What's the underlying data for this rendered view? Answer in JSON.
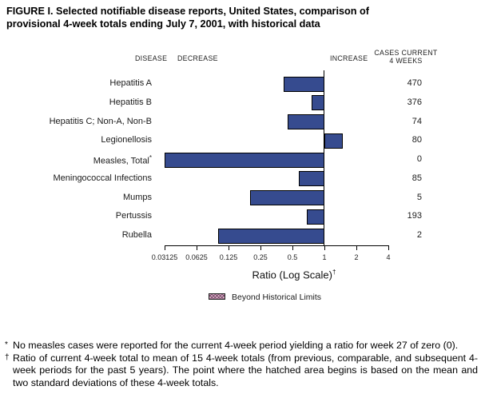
{
  "title_line1": "FIGURE I. Selected notifiable disease reports, United States, comparison of",
  "title_line2": "provisional 4-week totals ending July 7, 2001, with historical data",
  "header": {
    "disease": "DISEASE",
    "decrease": "DECREASE",
    "increase": "INCREASE",
    "cases_line1": "CASES CURRENT",
    "cases_line2": "4 WEEKS"
  },
  "chart_data": {
    "type": "bar",
    "orientation": "horizontal",
    "scale": "log2",
    "title": "Selected notifiable disease reports, United States, comparison of provisional 4-week totals ending July 7, 2001, with historical data",
    "xlabel": "Ratio (Log Scale)",
    "xlabel_superscript": "†",
    "axis_ticks": [
      "0.03125",
      "0.0625",
      "0.125",
      "0.25",
      "0.5",
      "1",
      "2",
      "4"
    ],
    "xlim": [
      0.03125,
      4
    ],
    "grid": false,
    "bar_color": "#364b8f",
    "rows": [
      {
        "disease": "Hepatitis A",
        "marker": "",
        "ratio": 0.41,
        "cases": "470"
      },
      {
        "disease": "Hepatitis B",
        "marker": "",
        "ratio": 0.76,
        "cases": "376"
      },
      {
        "disease": "Hepatitis C; Non-A, Non-B",
        "marker": "",
        "ratio": 0.45,
        "cases": "74"
      },
      {
        "disease": "Legionellosis",
        "marker": "",
        "ratio": 1.49,
        "cases": "80"
      },
      {
        "disease": "Measles, Total",
        "marker": "*",
        "ratio": 0,
        "cases": "0"
      },
      {
        "disease": "Meningococcal Infections",
        "marker": "",
        "ratio": 0.57,
        "cases": "85"
      },
      {
        "disease": "Mumps",
        "marker": "",
        "ratio": 0.2,
        "cases": "5"
      },
      {
        "disease": "Pertussis",
        "marker": "",
        "ratio": 0.68,
        "cases": "193"
      },
      {
        "disease": "Rubella",
        "marker": "",
        "ratio": 0.1,
        "cases": "2"
      }
    ],
    "legend": {
      "label": "Beyond Historical Limits",
      "position": "bottom"
    }
  },
  "footnotes": [
    {
      "marker": "*",
      "text": "No measles cases were reported for the current 4-week period yielding a ratio for week 27 of zero (0)."
    },
    {
      "marker": "†",
      "text": "Ratio of current 4-week total to mean of 15 4-week totals (from previous, comparable, and subsequent 4-week periods for the past 5 years). The point where the hatched area begins is based on the mean and two standard deviations of these 4-week totals."
    }
  ]
}
